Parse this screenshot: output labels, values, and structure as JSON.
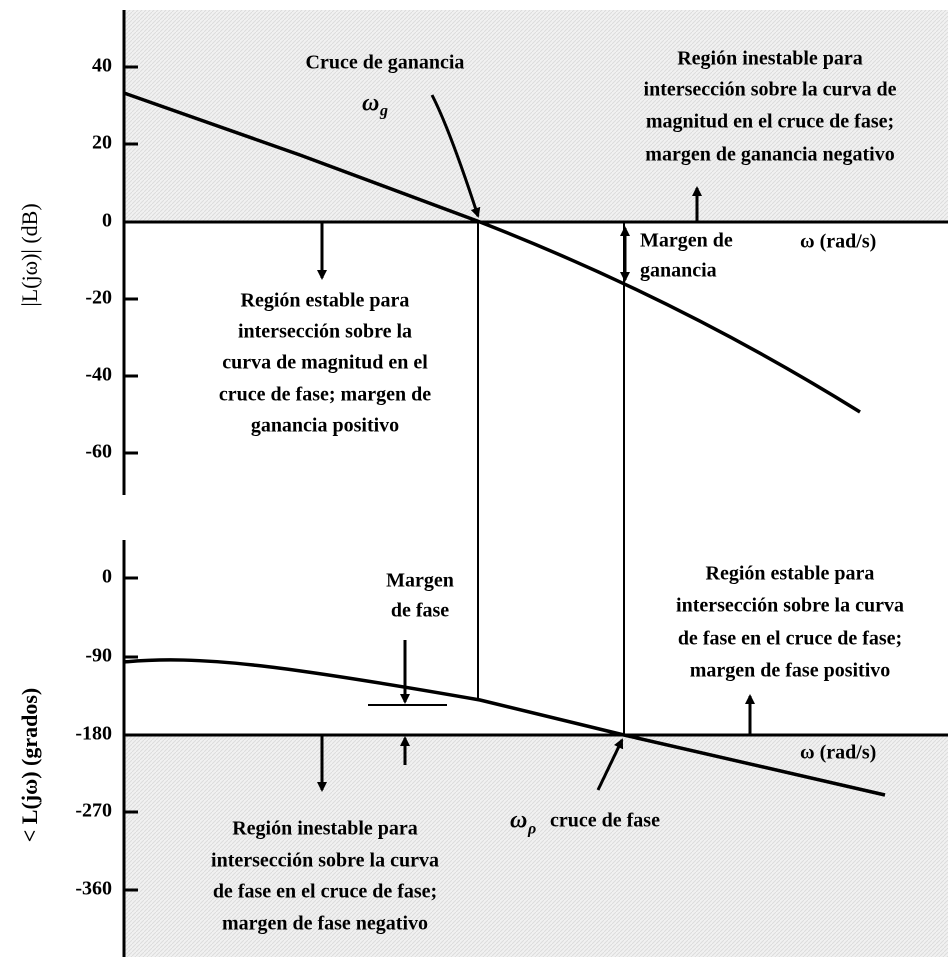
{
  "magnitude_plot": {
    "y_label": "|L(jω)| (dB)",
    "ticks": [
      40,
      20,
      0,
      -20,
      -40,
      -60
    ],
    "x_label": "ω (rad/s)",
    "gain_crossover": {
      "title": "Cruce de ganancia",
      "symbol": "ω",
      "subscript": "g"
    },
    "unstable_region": [
      "Región inestable para",
      "intersección sobre la curva de",
      "magnitud en el cruce de fase;",
      "margen de ganancia negativo"
    ],
    "gain_margin": [
      "Margen de",
      "ganancia"
    ],
    "stable_region": [
      "Región estable para",
      "intersección sobre la",
      "curva de magnitud en el",
      "cruce de fase; margen de",
      "ganancia positivo"
    ]
  },
  "phase_plot": {
    "y_label": "< L(jω) (grados)",
    "ticks": [
      0,
      -90,
      -180,
      -270,
      -360
    ],
    "x_label": "ω (rad/s)",
    "phase_margin": [
      "Margen",
      "de fase"
    ],
    "stable_region": [
      "Región estable para",
      "intersección sobre la curva",
      "de fase en el cruce de fase;",
      "margen de fase positivo"
    ],
    "unstable_region": [
      "Región inestable para",
      "intersección sobre la curva",
      "de fase en el cruce de fase;",
      "margen de fase negativo"
    ],
    "phase_crossover": {
      "symbol": "ω",
      "subscript": "ρ",
      "text": "cruce de fase"
    }
  }
}
